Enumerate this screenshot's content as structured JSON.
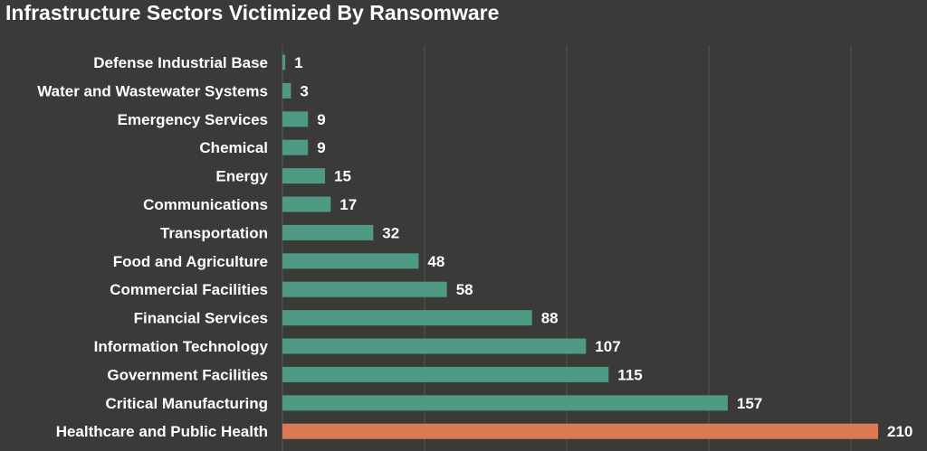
{
  "chart_data": {
    "type": "bar",
    "orientation": "horizontal",
    "title": "Infrastructure Sectors Victimized By Ransomware",
    "xlabel": "",
    "ylabel": "",
    "xlim": [
      0,
      210
    ],
    "grid": true,
    "categories": [
      "Defense Industrial Base",
      "Water and Wastewater Systems",
      "Emergency Services",
      "Chemical",
      "Energy",
      "Communications",
      "Transportation",
      "Food and Agriculture",
      "Commercial Facilities",
      "Financial Services",
      "Information Technology",
      "Government Facilities",
      "Critical Manufacturing",
      "Healthcare and Public Health"
    ],
    "values": [
      1,
      3,
      9,
      9,
      15,
      17,
      32,
      48,
      58,
      88,
      107,
      115,
      157,
      210
    ],
    "highlight_index": 13
  },
  "colors": {
    "background": "#3a3a38",
    "bar": "#4f9a85",
    "highlight": "#d97a54",
    "text": "#ffffff",
    "grid": "#555553"
  }
}
